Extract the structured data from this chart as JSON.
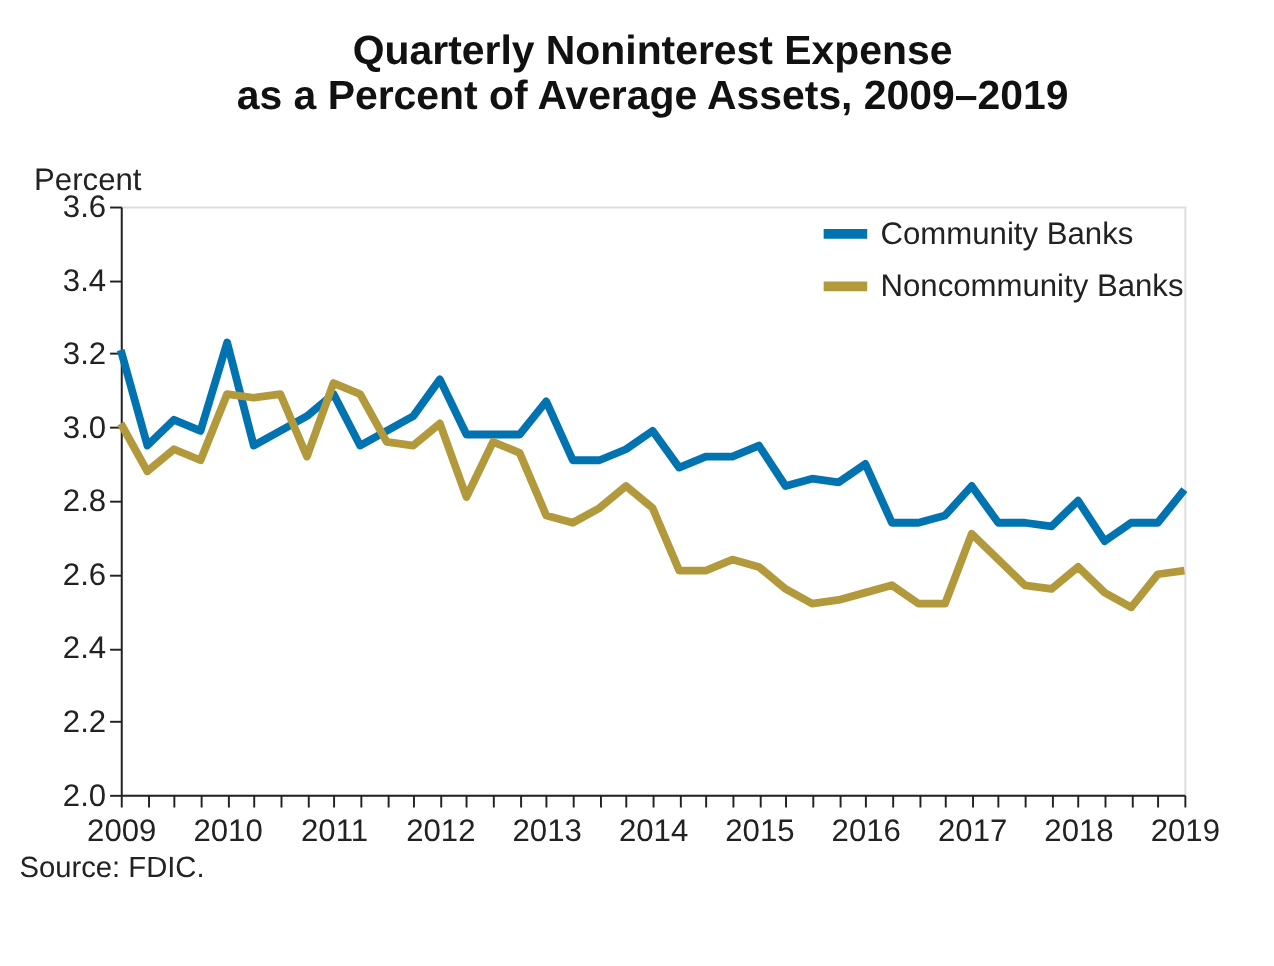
{
  "chart_data": {
    "type": "line",
    "title": [
      "Quarterly Noninterest Expense",
      "as a Percent of Average Assets, 2009–2019"
    ],
    "ylabel": "Percent",
    "annotations": [
      "Source: FDIC."
    ],
    "x": [
      2009,
      2009.25,
      2009.5,
      2009.75,
      2010,
      2010.25,
      2010.5,
      2010.75,
      2011,
      2011.25,
      2011.5,
      2011.75,
      2012,
      2012.25,
      2012.5,
      2012.75,
      2013,
      2013.25,
      2013.5,
      2013.75,
      2014,
      2014.25,
      2014.5,
      2014.75,
      2015,
      2015.25,
      2015.5,
      2015.75,
      2016,
      2016.25,
      2016.5,
      2016.75,
      2017,
      2017.25,
      2017.5,
      2017.75,
      2018,
      2018.25,
      2018.5,
      2018.75,
      2019
    ],
    "series": [
      {
        "name": "Community Banks",
        "color": "#0073b0",
        "values": [
          3.21,
          2.95,
          3.02,
          2.99,
          3.23,
          2.95,
          2.99,
          3.03,
          3.09,
          2.95,
          2.99,
          3.03,
          3.13,
          2.98,
          2.98,
          2.98,
          3.07,
          2.91,
          2.91,
          2.94,
          2.99,
          2.89,
          2.92,
          2.92,
          2.95,
          2.84,
          2.86,
          2.85,
          2.9,
          2.74,
          2.74,
          2.76,
          2.84,
          2.74,
          2.74,
          2.73,
          2.8,
          2.69,
          2.74,
          2.74,
          2.83
        ]
      },
      {
        "name": "Noncommunity Banks",
        "color": "#b29a3c",
        "values": [
          3.01,
          2.88,
          2.94,
          2.91,
          3.09,
          3.08,
          3.09,
          2.92,
          3.12,
          3.09,
          2.96,
          2.95,
          3.01,
          2.81,
          2.96,
          2.93,
          2.76,
          2.74,
          2.78,
          2.84,
          2.78,
          2.61,
          2.61,
          2.64,
          2.62,
          2.56,
          2.52,
          2.53,
          2.55,
          2.57,
          2.52,
          2.52,
          2.71,
          2.64,
          2.57,
          2.56,
          2.62,
          2.55,
          2.51,
          2.6,
          2.61
        ]
      }
    ],
    "xlim": [
      2009,
      2019
    ],
    "xticks": [
      2009,
      {
        "value": 2009.25,
        "label": null
      },
      {
        "value": 2009.5,
        "label": null
      },
      {
        "value": 2009.75,
        "label": null
      },
      2010,
      {
        "value": 2010.25,
        "label": null
      },
      {
        "value": 2010.5,
        "label": null
      },
      {
        "value": 2010.75,
        "label": null
      },
      2011,
      {
        "value": 2011.25,
        "label": null
      },
      {
        "value": 2011.5,
        "label": null
      },
      {
        "value": 2011.75,
        "label": null
      },
      2012,
      {
        "value": 2012.25,
        "label": null
      },
      {
        "value": 2012.5,
        "label": null
      },
      {
        "value": 2012.75,
        "label": null
      },
      2013,
      {
        "value": 2013.25,
        "label": null
      },
      {
        "value": 2013.5,
        "label": null
      },
      {
        "value": 2013.75,
        "label": null
      },
      2014,
      {
        "value": 2014.25,
        "label": null
      },
      {
        "value": 2014.5,
        "label": null
      },
      {
        "value": 2014.75,
        "label": null
      },
      2015,
      {
        "value": 2015.25,
        "label": null
      },
      {
        "value": 2015.5,
        "label": null
      },
      {
        "value": 2015.75,
        "label": null
      },
      2016,
      {
        "value": 2016.25,
        "label": null
      },
      {
        "value": 2016.5,
        "label": null
      },
      {
        "value": 2016.75,
        "label": null
      },
      2017,
      {
        "value": 2017.25,
        "label": null
      },
      {
        "value": 2017.5,
        "label": null
      },
      {
        "value": 2017.75,
        "label": null
      },
      2018,
      {
        "value": 2018.25,
        "label": null
      },
      {
        "value": 2018.5,
        "label": null
      },
      {
        "value": 2018.75,
        "label": null
      },
      2019
    ],
    "ylim": [
      2.0,
      3.6
    ],
    "yticks": [
      {
        "value": 2,
        "label": "2.0"
      },
      2.2,
      2.4,
      2.6,
      2.8,
      {
        "value": 3,
        "label": "3.0"
      },
      3.2,
      3.4,
      3.6
    ],
    "grid": false,
    "legend": "top right",
    "marker": "none",
    "line_style": "solid"
  }
}
